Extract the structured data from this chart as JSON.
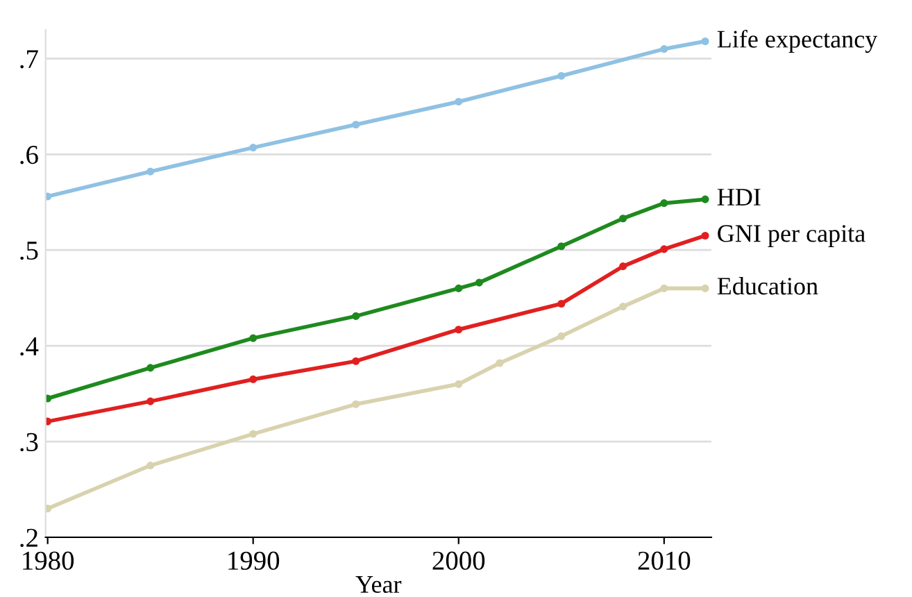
{
  "chart_data": {
    "type": "line",
    "xlabel": "Year",
    "xlim": [
      1979.9,
      2012.3
    ],
    "ylim": [
      0.2,
      0.73
    ],
    "xticks": [
      1980,
      1990,
      2000,
      2010
    ],
    "yticks": [
      {
        "value": 0.2,
        "label": ".2"
      },
      {
        "value": 0.3,
        "label": ".3"
      },
      {
        "value": 0.4,
        "label": ".4"
      },
      {
        "value": 0.5,
        "label": ".5"
      },
      {
        "value": 0.6,
        "label": ".6"
      },
      {
        "value": 0.7,
        "label": ".7"
      }
    ],
    "grid": "y",
    "legend": false,
    "marker": "circle",
    "line_style": "solid",
    "series": [
      {
        "name": "Life expectancy",
        "color": "#8fc1e3",
        "x": [
          1980,
          1985,
          1990,
          1995,
          2000,
          2005,
          2010,
          2012
        ],
        "values": [
          0.556,
          0.582,
          0.607,
          0.631,
          0.655,
          0.682,
          0.71,
          0.718
        ]
      },
      {
        "name": "HDI",
        "color": "#1e8a1e",
        "x": [
          1980,
          1985,
          1990,
          1995,
          2000,
          2001,
          2005,
          2008,
          2010,
          2012
        ],
        "values": [
          0.345,
          0.377,
          0.408,
          0.431,
          0.46,
          0.466,
          0.504,
          0.533,
          0.549,
          0.553
        ]
      },
      {
        "name": "GNI per capita",
        "color": "#e02020",
        "x": [
          1980,
          1985,
          1990,
          1995,
          2000,
          2005,
          2008,
          2010,
          2012
        ],
        "values": [
          0.321,
          0.342,
          0.365,
          0.384,
          0.417,
          0.444,
          0.483,
          0.501,
          0.515
        ]
      },
      {
        "name": "Education",
        "color": "#d8d2ae",
        "x": [
          1980,
          1985,
          1990,
          1995,
          2000,
          2002,
          2005,
          2008,
          2010,
          2012
        ],
        "values": [
          0.23,
          0.275,
          0.308,
          0.339,
          0.36,
          0.382,
          0.41,
          0.441,
          0.46,
          0.46
        ]
      }
    ]
  }
}
